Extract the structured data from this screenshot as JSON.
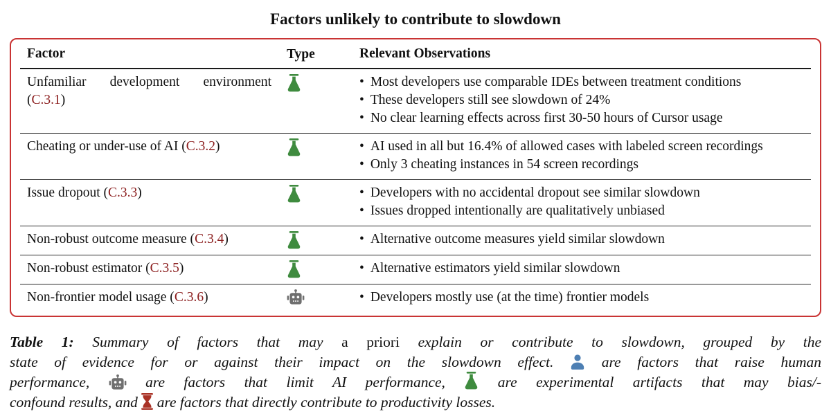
{
  "title": "Factors unlikely to contribute to slowdown",
  "colors": {
    "box_border_red": "#c93434",
    "section_ref_red": "#8b1d1d",
    "flask_green": "#3f8b3f",
    "robot_gray": "#6f6f6f",
    "person_blue": "#4d7fb3",
    "hourglass_red": "#a93226",
    "text_black": "#111111"
  },
  "table": {
    "headers": [
      "Factor",
      "Type",
      "Relevant Observations"
    ],
    "rows": [
      {
        "factor": "Unfamiliar development environment",
        "ref": "C.3.1",
        "type_icon": "flask",
        "observations": [
          "Most developers use comparable IDEs between treatment conditions",
          "These developers still see slowdown of 24%",
          "No clear learning effects across first 30-50 hours of Cursor usage"
        ]
      },
      {
        "factor": "Cheating or under-use of AI",
        "ref": "C.3.2",
        "type_icon": "flask",
        "observations": [
          "AI used in all but 16.4% of allowed cases with labeled screen recordings",
          "Only 3 cheating instances in 54 screen recordings"
        ]
      },
      {
        "factor": "Issue dropout",
        "ref": "C.3.3",
        "type_icon": "flask",
        "observations": [
          "Developers with no accidental dropout see similar slowdown",
          "Issues dropped intentionally are qualitatively unbiased"
        ]
      },
      {
        "factor": "Non-robust outcome measure",
        "ref": "C.3.4",
        "type_icon": "flask",
        "observations": [
          "Alternative outcome measures yield similar slowdown"
        ]
      },
      {
        "factor": "Non-robust estimator",
        "ref": "C.3.5",
        "type_icon": "flask",
        "observations": [
          "Alternative estimators yield similar slowdown"
        ]
      },
      {
        "factor": "Non-frontier model usage",
        "ref": "C.3.6",
        "type_icon": "robot",
        "observations": [
          "Developers mostly use (at the time) frontier models"
        ]
      }
    ]
  },
  "caption": {
    "lines": [
      [
        {
          "style": "bold",
          "text": "Table 1: "
        },
        {
          "style": "italic",
          "text": " Summary of factors that may "
        },
        {
          "style": "roman",
          "text": "a priori"
        },
        {
          "style": "italic",
          "text": " explain or contribute to slowdown, grouped by the"
        }
      ],
      [
        {
          "style": "italic",
          "text": "state of evidence for or against their impact on the slowdown effect. "
        },
        {
          "icon": "person"
        },
        {
          "style": "italic",
          "text": " are factors that raise human"
        }
      ],
      [
        {
          "style": "italic",
          "text": "performance, "
        },
        {
          "icon": "robot"
        },
        {
          "style": "italic",
          "text": " are factors that limit AI performance, "
        },
        {
          "icon": "flask"
        },
        {
          "style": "italic",
          "text": " are experimental artifacts that may bias/-"
        }
      ],
      [
        {
          "style": "italic",
          "text": "confound results, and "
        },
        {
          "icon": "hourglass"
        },
        {
          "style": "italic",
          "text": " are factors that directly contribute to productivity losses."
        }
      ]
    ]
  }
}
